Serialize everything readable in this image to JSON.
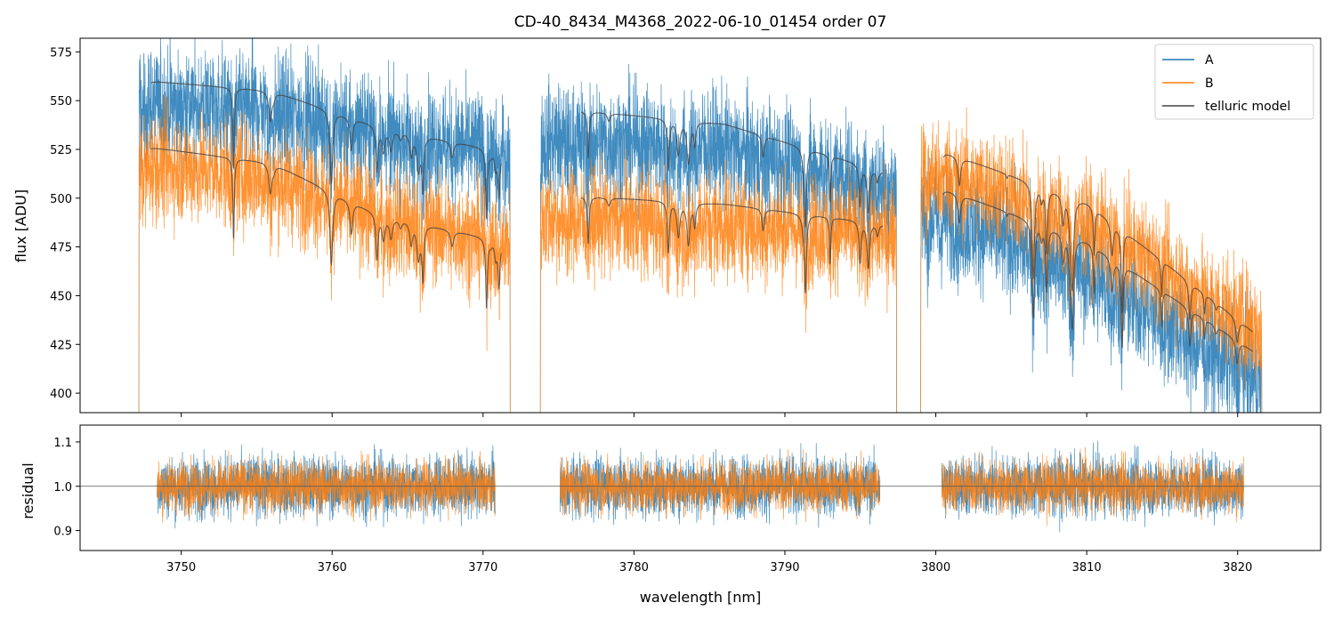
{
  "chart_data": [
    {
      "type": "line",
      "title": "CD-40_8434_M4368_2022-06-10_01454  order 07",
      "xlabel": "",
      "ylabel": "flux [ADU]",
      "xlim": [
        3743.3,
        3825.5
      ],
      "ylim": [
        390,
        582
      ],
      "yticks": [
        "400",
        "425",
        "450",
        "475",
        "500",
        "525",
        "550",
        "575"
      ],
      "xticks": [
        3750,
        3760,
        3770,
        3780,
        3790,
        3800,
        3810,
        3820
      ],
      "legend_position": "top-right",
      "grid": false,
      "segments": [
        [
          3747.2,
          3771.8
        ],
        [
          3773.8,
          3797.4
        ],
        [
          3799.0,
          3821.6
        ]
      ],
      "series": [
        {
          "name": "A",
          "color": "#1f77b4",
          "level": [
            [
              3747.2,
              548
            ],
            [
              3755.0,
              546
            ],
            [
              3763.0,
              535
            ],
            [
              3771.8,
              522
            ],
            [
              3773.8,
              530
            ],
            [
              3785.0,
              527
            ],
            [
              3797.4,
              506
            ],
            [
              3799.0,
              496
            ],
            [
              3810.0,
              462
            ],
            [
              3821.6,
              405
            ]
          ],
          "noise": 15
        },
        {
          "name": "B",
          "color": "#ff7f0e",
          "level": [
            [
              3747.2,
              517
            ],
            [
              3755.0,
              512
            ],
            [
              3763.0,
              492
            ],
            [
              3771.8,
              476
            ],
            [
              3773.8,
              490
            ],
            [
              3785.0,
              487
            ],
            [
              3797.4,
              482
            ],
            [
              3799.0,
              518
            ],
            [
              3810.0,
              488
            ],
            [
              3821.6,
              432
            ]
          ],
          "noise": 14
        },
        {
          "name": "telluric model",
          "color": "#444444",
          "models": [
            {
              "level": [
                [
                  3748.0,
                  560
                ],
                [
                  3756.0,
                  555
                ],
                [
                  3763.0,
                  537
                ],
                [
                  3771.2,
                  524
                ]
              ]
            },
            {
              "level": [
                [
                  3748.0,
                  526
                ],
                [
                  3756.0,
                  518
                ],
                [
                  3763.0,
                  492
                ],
                [
                  3771.2,
                  478
                ]
              ]
            },
            {
              "level": [
                [
                  3776.5,
                  545
                ],
                [
                  3786.0,
                  538
                ],
                [
                  3796.5,
                  514
                ]
              ]
            },
            {
              "level": [
                [
                  3776.5,
                  501
                ],
                [
                  3786.0,
                  497
                ],
                [
                  3796.5,
                  487
                ]
              ]
            },
            {
              "level": [
                [
                  3800.5,
                  524
                ],
                [
                  3810.0,
                  498
                ],
                [
                  3821.0,
                  432
                ]
              ]
            },
            {
              "level": [
                [
                  3800.5,
                  505
                ],
                [
                  3810.0,
                  478
                ],
                [
                  3821.0,
                  422
                ]
              ]
            }
          ]
        }
      ]
    },
    {
      "type": "line",
      "title": "",
      "xlabel": "wavelength [nm]",
      "ylabel": "residual",
      "xlim": [
        3743.3,
        3825.5
      ],
      "ylim": [
        0.855,
        1.138
      ],
      "yticks": [
        "0.9",
        "1.0",
        "1.1"
      ],
      "xticks": [
        "3750",
        "3760",
        "3770",
        "3780",
        "3790",
        "3800",
        "3810",
        "3820"
      ],
      "reference_line": 1.0,
      "segments": [
        [
          3748.4,
          3770.8
        ],
        [
          3775.1,
          3796.3
        ],
        [
          3800.4,
          3820.4
        ]
      ],
      "series": [
        {
          "name": "A",
          "color": "#1f77b4",
          "center": 1.0,
          "noise": 0.035
        },
        {
          "name": "B",
          "color": "#ff7f0e",
          "center": 1.0,
          "noise": 0.03
        }
      ]
    }
  ]
}
